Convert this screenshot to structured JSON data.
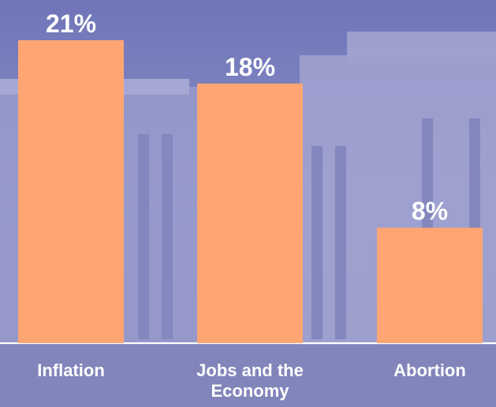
{
  "chart_data": {
    "type": "bar",
    "categories": [
      "Inflation",
      "Jobs and the Economy",
      "Abortion"
    ],
    "values": [
      21,
      18,
      8
    ],
    "value_labels": [
      "21%",
      "18%",
      "8%"
    ],
    "color": "#ffa574"
  }
}
